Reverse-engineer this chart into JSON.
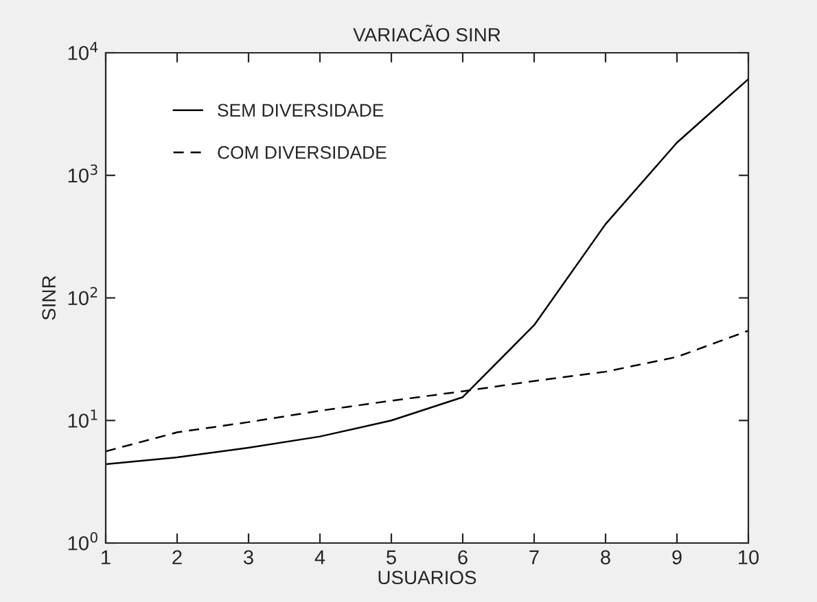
{
  "chart_data": {
    "type": "line",
    "title": "VARIACÃO SINR",
    "xlabel": "USUARIOS",
    "ylabel": "SINR",
    "x": [
      1,
      2,
      3,
      4,
      5,
      6,
      7,
      8,
      9,
      10
    ],
    "series": [
      {
        "name": "SEM DIVERSIDADE",
        "color": "#000000",
        "line_style": "solid",
        "values": [
          4.4,
          5.0,
          6.0,
          7.4,
          10,
          15.5,
          60,
          400,
          1850,
          6100
        ]
      },
      {
        "name": "COM DIVERSIDADE",
        "color": "#000000",
        "line_style": "dashed",
        "values": [
          5.6,
          8.0,
          9.7,
          12,
          14.5,
          17.3,
          21,
          25,
          33,
          54
        ]
      }
    ],
    "log": "y",
    "xlim": [
      1,
      10
    ],
    "xticks": [
      1,
      2,
      3,
      4,
      5,
      6,
      7,
      8,
      9,
      10
    ],
    "ylim": [
      1,
      10000
    ],
    "yticks": [
      {
        "value": 1,
        "label": "10$^{0}$"
      },
      {
        "value": 10,
        "label": "10$^{1}$"
      },
      {
        "value": 100,
        "label": "10$^{2}$"
      },
      {
        "value": 1000,
        "label": "10$^{3}$"
      },
      {
        "value": 10000,
        "label": "10$^{4}$"
      }
    ],
    "grid": false,
    "legend": "top left"
  }
}
